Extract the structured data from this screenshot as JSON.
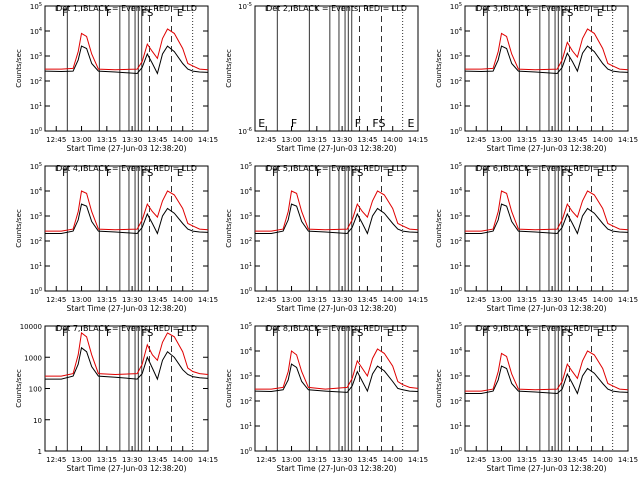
{
  "figure": {
    "xlabel": "Start Time (27-Jun-03 12:38:20)",
    "ylabel": "Counts/sec",
    "x_ticks": [
      "12:45",
      "13:00",
      "13:15",
      "13:30",
      "13:45",
      "14:00",
      "14:15"
    ],
    "colors": {
      "events": "#000000",
      "lld": "#e00000"
    }
  },
  "chart_data": [
    {
      "type": "line",
      "title": "Det 1, BLACK = Events, RED = LLD",
      "x_range": [
        "12:38:20",
        "14:15"
      ],
      "log_y": true,
      "ylim": [
        1,
        100000
      ],
      "yticks": [
        "10^0",
        "10^1",
        "10^2",
        "10^3",
        "10^4",
        "10^5"
      ],
      "markers": [
        "F",
        "F",
        "FS",
        "E"
      ],
      "x": [
        "12:38",
        "12:48",
        "12:55",
        "12:58",
        "13:00",
        "13:03",
        "13:06",
        "13:10",
        "13:20",
        "13:33",
        "13:36",
        "13:39",
        "13:42",
        "13:45",
        "13:48",
        "13:51",
        "13:55",
        "14:00",
        "14:03",
        "14:06",
        "14:10",
        "14:15"
      ],
      "series": [
        {
          "name": "LLD",
          "values": [
            300,
            300,
            320,
            1500,
            8000,
            6000,
            1200,
            300,
            280,
            300,
            600,
            3000,
            1500,
            800,
            5000,
            12000,
            8000,
            2000,
            500,
            400,
            300,
            280
          ]
        },
        {
          "name": "Events",
          "values": [
            250,
            240,
            250,
            700,
            2500,
            2000,
            500,
            250,
            230,
            200,
            350,
            1200,
            500,
            200,
            1200,
            2500,
            1500,
            500,
            300,
            250,
            230,
            220
          ]
        }
      ]
    },
    {
      "type": "line",
      "title": "Det 2, BLACK = Events, RED = LLD",
      "x_range": [
        "12:38:20",
        "14:15"
      ],
      "log_y": true,
      "ylim": [
        1e-06,
        1e-05
      ],
      "yticks": [
        "10^-6",
        "10^-5"
      ],
      "markers": [
        "E",
        "F",
        "F",
        "FS",
        "E"
      ],
      "x": [],
      "series": []
    },
    {
      "type": "line",
      "title": "Det 3, BLACK = Events, RED = LLD",
      "x_range": [
        "12:38:20",
        "14:15"
      ],
      "log_y": true,
      "ylim": [
        1,
        100000
      ],
      "yticks": [
        "10^0",
        "10^1",
        "10^2",
        "10^3",
        "10^4",
        "10^5"
      ],
      "markers": [
        "F",
        "F",
        "FS",
        "E"
      ],
      "x": [
        "12:38",
        "12:48",
        "12:55",
        "12:58",
        "13:00",
        "13:03",
        "13:06",
        "13:10",
        "13:20",
        "13:33",
        "13:36",
        "13:39",
        "13:42",
        "13:45",
        "13:48",
        "13:51",
        "13:55",
        "14:00",
        "14:03",
        "14:06",
        "14:10",
        "14:15"
      ],
      "series": [
        {
          "name": "LLD",
          "values": [
            300,
            300,
            320,
            1500,
            8000,
            6000,
            1200,
            300,
            280,
            300,
            700,
            3500,
            1600,
            900,
            5000,
            12000,
            8000,
            2000,
            500,
            400,
            300,
            280
          ]
        },
        {
          "name": "Events",
          "values": [
            250,
            240,
            250,
            700,
            2500,
            2000,
            500,
            250,
            230,
            200,
            350,
            1300,
            600,
            250,
            1300,
            2500,
            1500,
            500,
            300,
            250,
            230,
            220
          ]
        }
      ]
    },
    {
      "type": "line",
      "title": "Det 4, BLACK = Events, RED = LLD",
      "x_range": [
        "12:38:20",
        "14:15"
      ],
      "log_y": true,
      "ylim": [
        1,
        100000
      ],
      "yticks": [
        "10^0",
        "10^1",
        "10^2",
        "10^3",
        "10^4",
        "10^5"
      ],
      "markers": [
        "F",
        "F",
        "FS",
        "E"
      ],
      "x": [
        "12:38",
        "12:48",
        "12:55",
        "12:58",
        "13:00",
        "13:03",
        "13:06",
        "13:10",
        "13:20",
        "13:33",
        "13:36",
        "13:39",
        "13:42",
        "13:45",
        "13:48",
        "13:51",
        "13:55",
        "14:00",
        "14:03",
        "14:06",
        "14:10",
        "14:15"
      ],
      "series": [
        {
          "name": "LLD",
          "values": [
            250,
            250,
            300,
            1500,
            10000,
            8000,
            1500,
            300,
            280,
            300,
            700,
            3000,
            1500,
            900,
            4000,
            10000,
            7000,
            2000,
            500,
            400,
            300,
            280
          ]
        },
        {
          "name": "Events",
          "values": [
            200,
            200,
            250,
            700,
            3000,
            2500,
            600,
            250,
            230,
            200,
            350,
            1200,
            500,
            200,
            1000,
            2000,
            1300,
            500,
            300,
            250,
            230,
            220
          ]
        }
      ]
    },
    {
      "type": "line",
      "title": "Det 5, BLACK = Events, RED = LLD",
      "x_range": [
        "12:38:20",
        "14:15"
      ],
      "log_y": true,
      "ylim": [
        1,
        100000
      ],
      "yticks": [
        "10^0",
        "10^1",
        "10^2",
        "10^3",
        "10^4",
        "10^5"
      ],
      "markers": [
        "F",
        "F",
        "FS",
        "E"
      ],
      "x": [
        "12:38",
        "12:48",
        "12:55",
        "12:58",
        "13:00",
        "13:03",
        "13:06",
        "13:10",
        "13:20",
        "13:33",
        "13:36",
        "13:39",
        "13:42",
        "13:45",
        "13:48",
        "13:51",
        "13:55",
        "14:00",
        "14:03",
        "14:06",
        "14:10",
        "14:15"
      ],
      "series": [
        {
          "name": "LLD",
          "values": [
            250,
            250,
            300,
            1500,
            10000,
            8000,
            1500,
            300,
            280,
            300,
            700,
            3000,
            1500,
            900,
            4000,
            10000,
            7000,
            2000,
            500,
            400,
            300,
            280
          ]
        },
        {
          "name": "Events",
          "values": [
            200,
            200,
            250,
            700,
            3000,
            2500,
            600,
            250,
            230,
            200,
            350,
            1200,
            500,
            200,
            1000,
            2000,
            1300,
            500,
            300,
            250,
            230,
            220
          ]
        }
      ]
    },
    {
      "type": "line",
      "title": "Det 6, BLACK = Events, RED = LLD",
      "x_range": [
        "12:38:20",
        "14:15"
      ],
      "log_y": true,
      "ylim": [
        1,
        100000
      ],
      "yticks": [
        "10^0",
        "10^1",
        "10^2",
        "10^3",
        "10^4",
        "10^5"
      ],
      "markers": [
        "F",
        "F",
        "FS",
        "E"
      ],
      "x": [
        "12:38",
        "12:48",
        "12:55",
        "12:58",
        "13:00",
        "13:03",
        "13:06",
        "13:10",
        "13:20",
        "13:33",
        "13:36",
        "13:39",
        "13:42",
        "13:45",
        "13:48",
        "13:51",
        "13:55",
        "14:00",
        "14:03",
        "14:06",
        "14:10",
        "14:15"
      ],
      "series": [
        {
          "name": "LLD",
          "values": [
            250,
            250,
            300,
            1500,
            10000,
            8000,
            1500,
            300,
            280,
            300,
            700,
            3000,
            1500,
            900,
            4000,
            10000,
            7000,
            2000,
            500,
            400,
            300,
            280
          ]
        },
        {
          "name": "Events",
          "values": [
            200,
            200,
            250,
            700,
            3000,
            2500,
            600,
            250,
            230,
            200,
            350,
            1200,
            500,
            200,
            1000,
            2000,
            1300,
            500,
            300,
            250,
            230,
            220
          ]
        }
      ]
    },
    {
      "type": "line",
      "title": "Det 7, BLACK = Events, RED = LLD",
      "x_range": [
        "12:38:20",
        "14:15"
      ],
      "log_y": true,
      "ylim": [
        1,
        10000
      ],
      "yticks": [
        "1",
        "10",
        "100",
        "1000",
        "10000"
      ],
      "markers": [
        "F",
        "F",
        "FS",
        "E"
      ],
      "x": [
        "12:38",
        "12:48",
        "12:55",
        "12:58",
        "13:00",
        "13:03",
        "13:06",
        "13:10",
        "13:20",
        "13:33",
        "13:36",
        "13:39",
        "13:42",
        "13:45",
        "13:48",
        "13:51",
        "13:55",
        "14:00",
        "14:03",
        "14:06",
        "14:10",
        "14:15"
      ],
      "series": [
        {
          "name": "LLD",
          "values": [
            250,
            250,
            300,
            1200,
            6000,
            4500,
            1200,
            300,
            280,
            300,
            600,
            2500,
            1200,
            800,
            3000,
            6000,
            4500,
            1500,
            450,
            350,
            300,
            280
          ]
        },
        {
          "name": "Events",
          "values": [
            200,
            200,
            250,
            600,
            2000,
            1500,
            500,
            250,
            230,
            200,
            300,
            1000,
            450,
            200,
            800,
            1500,
            1000,
            400,
            280,
            240,
            220,
            210
          ]
        }
      ]
    },
    {
      "type": "line",
      "title": "Det 8, BLACK = Events, RED = LLD",
      "x_range": [
        "12:38:20",
        "14:15"
      ],
      "log_y": true,
      "ylim": [
        1,
        100000
      ],
      "yticks": [
        "10^0",
        "10^1",
        "10^2",
        "10^3",
        "10^4",
        "10^5"
      ],
      "markers": [
        "F",
        "F",
        "FS",
        "E"
      ],
      "x": [
        "12:38",
        "12:48",
        "12:55",
        "12:58",
        "13:00",
        "13:03",
        "13:06",
        "13:10",
        "13:20",
        "13:33",
        "13:36",
        "13:39",
        "13:42",
        "13:45",
        "13:48",
        "13:51",
        "13:55",
        "14:00",
        "14:03",
        "14:06",
        "14:10",
        "14:15"
      ],
      "series": [
        {
          "name": "LLD",
          "values": [
            300,
            300,
            350,
            1500,
            10000,
            7000,
            1500,
            350,
            300,
            350,
            800,
            4000,
            2000,
            1000,
            5000,
            12000,
            8000,
            2500,
            600,
            450,
            350,
            320
          ]
        },
        {
          "name": "Events",
          "values": [
            250,
            240,
            280,
            700,
            3000,
            2200,
            600,
            280,
            250,
            220,
            400,
            1500,
            600,
            250,
            1200,
            2500,
            1600,
            600,
            320,
            280,
            250,
            240
          ]
        }
      ]
    },
    {
      "type": "line",
      "title": "Det 9, BLACK = Events, RED = LLD",
      "x_range": [
        "12:38:20",
        "14:15"
      ],
      "log_y": true,
      "ylim": [
        1,
        100000
      ],
      "yticks": [
        "10^0",
        "10^1",
        "10^2",
        "10^3",
        "10^4",
        "10^5"
      ],
      "markers": [
        "F",
        "F",
        "FS",
        "E"
      ],
      "x": [
        "12:38",
        "12:48",
        "12:55",
        "12:58",
        "13:00",
        "13:03",
        "13:06",
        "13:10",
        "13:20",
        "13:33",
        "13:36",
        "13:39",
        "13:42",
        "13:45",
        "13:48",
        "13:51",
        "13:55",
        "14:00",
        "14:03",
        "14:06",
        "14:10",
        "14:15"
      ],
      "series": [
        {
          "name": "LLD",
          "values": [
            250,
            250,
            300,
            1500,
            8000,
            6000,
            1200,
            300,
            280,
            300,
            600,
            3000,
            1500,
            800,
            4000,
            10000,
            7000,
            2000,
            500,
            400,
            300,
            280
          ]
        },
        {
          "name": "Events",
          "values": [
            200,
            200,
            250,
            700,
            2500,
            2000,
            500,
            250,
            230,
            200,
            300,
            1200,
            500,
            200,
            1000,
            2000,
            1300,
            500,
            300,
            250,
            230,
            220
          ]
        }
      ]
    }
  ]
}
